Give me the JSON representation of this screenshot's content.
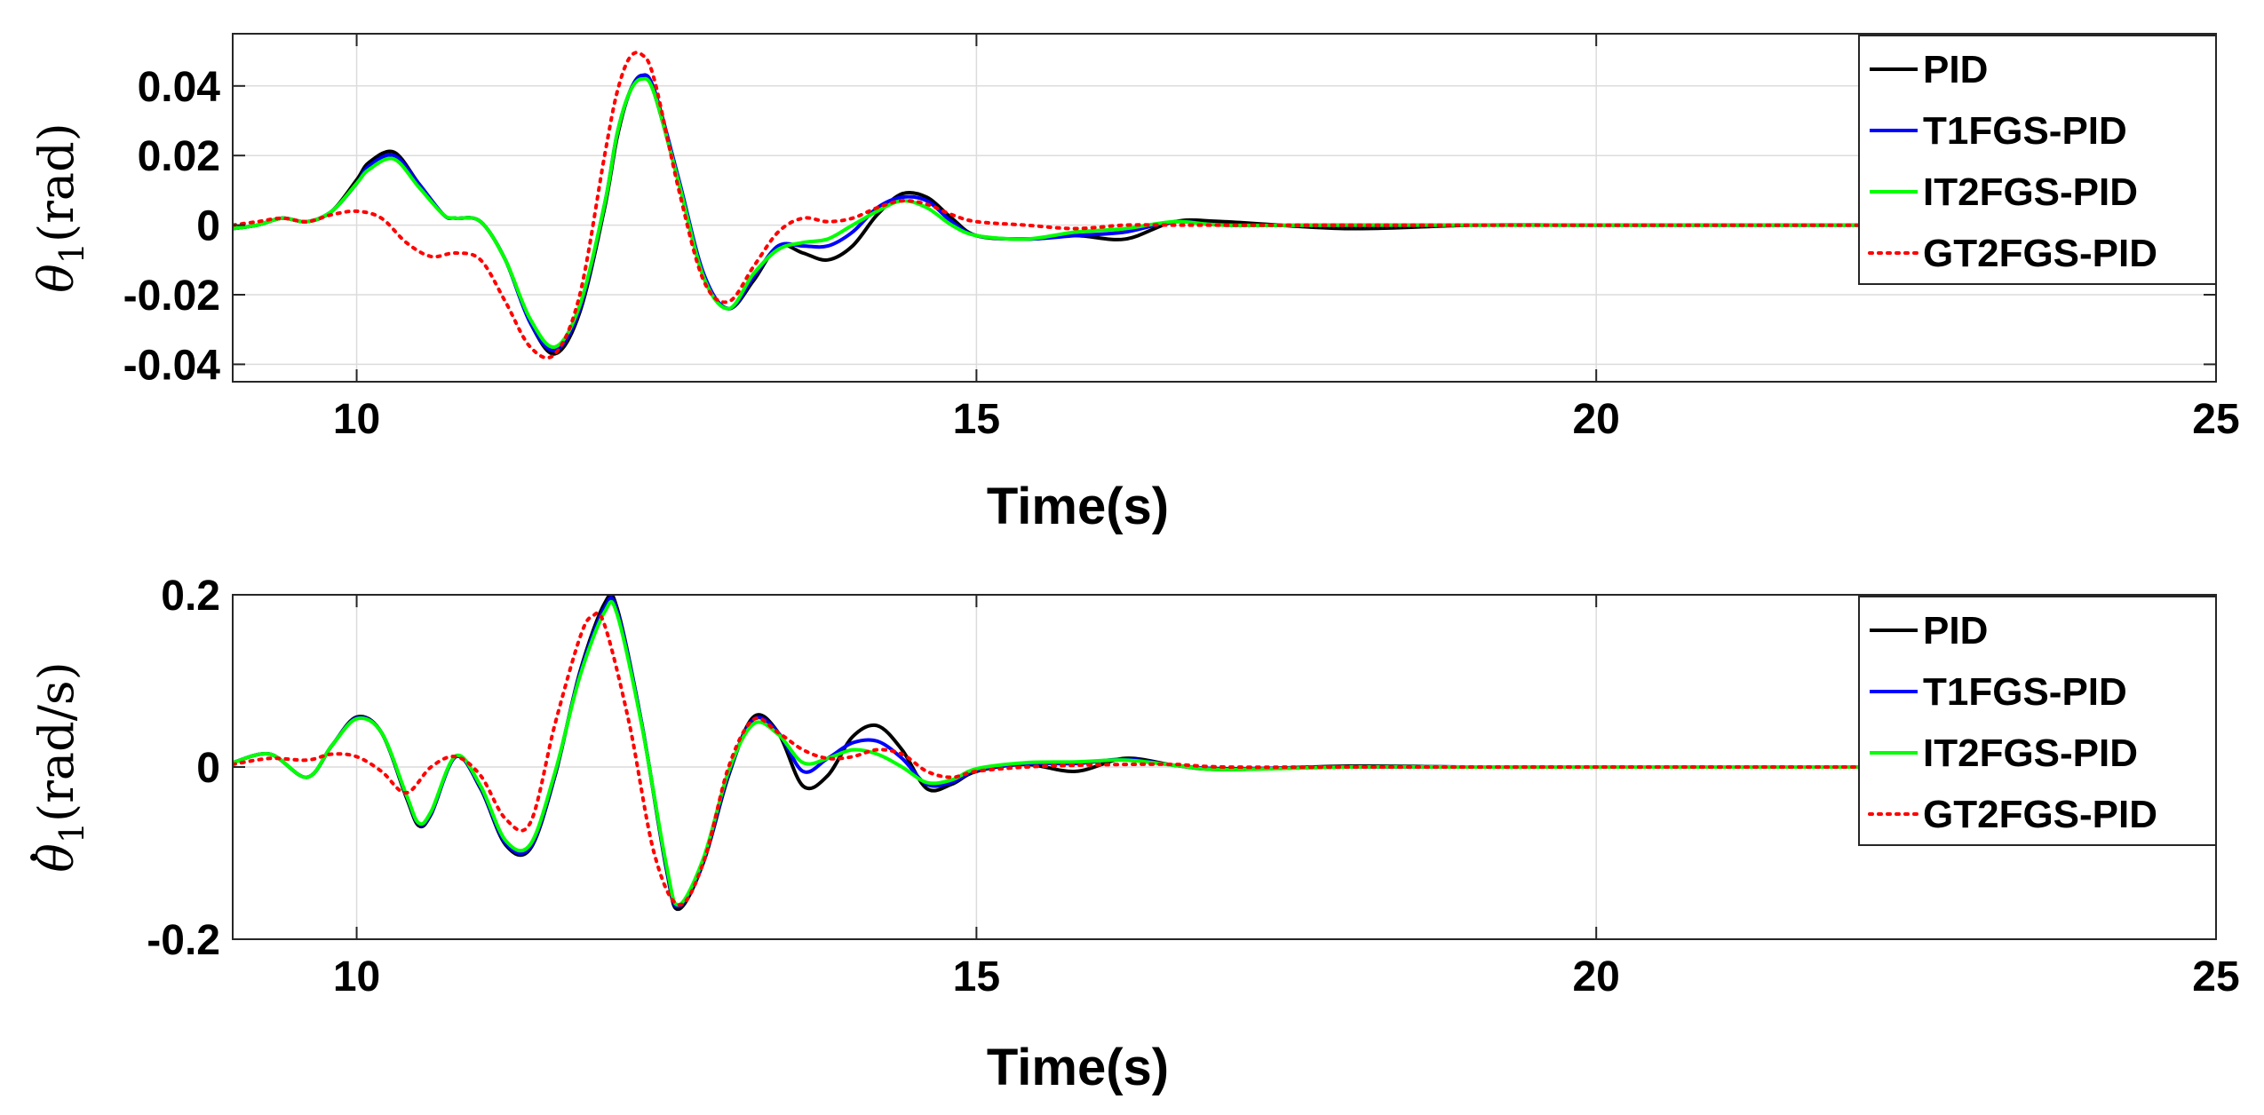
{
  "chart_data": [
    {
      "type": "line",
      "xlabel": "Time(s)",
      "ylabel": "θ₁(rad)",
      "ylabel_parts": {
        "symbol": "θ",
        "sub": "1",
        "unit": "(rad)"
      },
      "xlim": [
        9,
        25
      ],
      "ylim": [
        -0.045,
        0.055
      ],
      "xticks": [
        10,
        15,
        20,
        25
      ],
      "yticks": [
        -0.04,
        -0.02,
        0,
        0.02,
        0.04
      ],
      "ytick_labels": [
        "-0.04",
        "-0.02",
        "0",
        "0.02",
        "0.04"
      ],
      "grid": true,
      "legend_position": "top-right",
      "series": [
        {
          "name": "PID",
          "color": "#000000",
          "dash": "solid",
          "x": [
            9.0,
            9.2,
            9.4,
            9.6,
            9.8,
            10.0,
            10.1,
            10.3,
            10.5,
            10.7,
            10.8,
            11.0,
            11.2,
            11.4,
            11.6,
            11.8,
            12.0,
            12.1,
            12.2,
            12.3,
            12.4,
            12.6,
            12.8,
            13.0,
            13.2,
            13.4,
            13.6,
            13.8,
            14.0,
            14.2,
            14.4,
            14.6,
            14.8,
            15.0,
            15.4,
            15.8,
            16.2,
            16.6,
            17.0,
            18.0,
            19.0,
            20.0,
            22.3
          ],
          "y": [
            -0.001,
            0.0,
            0.002,
            0.001,
            0.004,
            0.013,
            0.018,
            0.021,
            0.012,
            0.003,
            0.002,
            0.001,
            -0.01,
            -0.028,
            -0.037,
            -0.025,
            0.005,
            0.025,
            0.038,
            0.043,
            0.038,
            0.012,
            -0.015,
            -0.024,
            -0.016,
            -0.006,
            -0.008,
            -0.01,
            -0.006,
            0.003,
            0.009,
            0.008,
            0.002,
            -0.003,
            -0.004,
            -0.003,
            -0.004,
            0.001,
            0.001,
            -0.001,
            0.0,
            0.0,
            0.0
          ]
        },
        {
          "name": "T1FGS-PID",
          "color": "#0000ff",
          "dash": "solid",
          "x": [
            9.0,
            9.2,
            9.4,
            9.6,
            9.8,
            10.0,
            10.1,
            10.3,
            10.5,
            10.7,
            10.8,
            11.0,
            11.2,
            11.4,
            11.6,
            11.8,
            12.0,
            12.1,
            12.2,
            12.3,
            12.4,
            12.6,
            12.8,
            13.0,
            13.2,
            13.4,
            13.6,
            13.8,
            14.0,
            14.2,
            14.4,
            14.6,
            14.8,
            15.0,
            15.4,
            15.8,
            16.2,
            16.6,
            17.0,
            18.0,
            19.0,
            20.0,
            22.3
          ],
          "y": [
            -0.001,
            0.0,
            0.002,
            0.001,
            0.004,
            0.012,
            0.017,
            0.02,
            0.012,
            0.003,
            0.002,
            0.001,
            -0.01,
            -0.028,
            -0.036,
            -0.024,
            0.006,
            0.026,
            0.038,
            0.043,
            0.039,
            0.013,
            -0.014,
            -0.024,
            -0.015,
            -0.006,
            -0.006,
            -0.006,
            -0.002,
            0.005,
            0.008,
            0.007,
            0.001,
            -0.003,
            -0.004,
            -0.003,
            -0.002,
            0.001,
            0.0,
            0.0,
            0.0,
            0.0,
            0.0
          ]
        },
        {
          "name": "IT2FGS-PID",
          "color": "#00ff00",
          "dash": "solid",
          "x": [
            9.0,
            9.2,
            9.4,
            9.6,
            9.8,
            10.0,
            10.1,
            10.3,
            10.5,
            10.7,
            10.8,
            11.0,
            11.2,
            11.4,
            11.6,
            11.8,
            12.0,
            12.1,
            12.2,
            12.3,
            12.4,
            12.6,
            12.8,
            13.0,
            13.2,
            13.4,
            13.6,
            13.8,
            14.0,
            14.2,
            14.4,
            14.6,
            14.8,
            15.0,
            15.4,
            15.8,
            16.2,
            16.6,
            17.0,
            18.0,
            19.0,
            20.0,
            22.3
          ],
          "y": [
            -0.001,
            0.0,
            0.002,
            0.001,
            0.004,
            0.012,
            0.016,
            0.019,
            0.011,
            0.003,
            0.002,
            0.001,
            -0.01,
            -0.027,
            -0.035,
            -0.023,
            0.006,
            0.026,
            0.038,
            0.042,
            0.038,
            0.012,
            -0.015,
            -0.024,
            -0.014,
            -0.007,
            -0.005,
            -0.004,
            0.0,
            0.004,
            0.007,
            0.005,
            0.0,
            -0.003,
            -0.004,
            -0.002,
            -0.001,
            0.001,
            0.0,
            0.0,
            0.0,
            0.0,
            0.0
          ]
        },
        {
          "name": "GT2FGS-PID",
          "color": "#ff0000",
          "dash": "dotted",
          "x": [
            9.0,
            9.2,
            9.4,
            9.6,
            9.8,
            10.0,
            10.2,
            10.4,
            10.6,
            10.8,
            11.0,
            11.2,
            11.4,
            11.6,
            11.8,
            12.0,
            12.1,
            12.2,
            12.3,
            12.4,
            12.6,
            12.8,
            13.0,
            13.2,
            13.4,
            13.6,
            13.8,
            14.0,
            14.2,
            14.4,
            14.6,
            14.8,
            15.0,
            15.4,
            15.8,
            16.2,
            16.6,
            17.0,
            18.0,
            19.0,
            20.0,
            22.3
          ],
          "y": [
            0.0,
            0.001,
            0.002,
            0.001,
            0.003,
            0.004,
            0.002,
            -0.005,
            -0.009,
            -0.008,
            -0.01,
            -0.022,
            -0.035,
            -0.037,
            -0.02,
            0.02,
            0.038,
            0.048,
            0.049,
            0.042,
            0.01,
            -0.016,
            -0.022,
            -0.012,
            -0.002,
            0.002,
            0.001,
            0.002,
            0.005,
            0.007,
            0.006,
            0.003,
            0.001,
            0.0,
            -0.001,
            0.0,
            0.0,
            0.0,
            0.0,
            0.0,
            0.0,
            0.0
          ]
        }
      ]
    },
    {
      "type": "line",
      "xlabel": "Time(s)",
      "ylabel": "θ̇₁(rad/s)",
      "ylabel_parts": {
        "symbol": "θ",
        "sub": "1",
        "unit": "(rad/s)"
      },
      "xlim": [
        9,
        25
      ],
      "ylim": [
        -0.2,
        0.2
      ],
      "xticks": [
        10,
        15,
        20,
        25
      ],
      "yticks": [
        -0.2,
        0,
        0.2
      ],
      "ytick_labels": [
        "-0.2",
        "0",
        "0.2"
      ],
      "grid": true,
      "legend_position": "top-right",
      "series": [
        {
          "name": "PID",
          "color": "#000000",
          "dash": "solid",
          "x": [
            9.0,
            9.3,
            9.6,
            9.8,
            10.0,
            10.2,
            10.4,
            10.5,
            10.6,
            10.8,
            11.0,
            11.2,
            11.4,
            11.6,
            11.8,
            12.0,
            12.1,
            12.3,
            12.5,
            12.6,
            12.8,
            13.0,
            13.2,
            13.4,
            13.6,
            13.8,
            14.0,
            14.2,
            14.4,
            14.6,
            14.8,
            15.0,
            15.4,
            15.8,
            16.2,
            16.6,
            17.0,
            18.0,
            19.0,
            20.0,
            22.3
          ],
          "y": [
            0.005,
            0.015,
            -0.012,
            0.025,
            0.058,
            0.04,
            -0.035,
            -0.068,
            -0.055,
            0.012,
            -0.025,
            -0.09,
            -0.095,
            -0.01,
            0.11,
            0.19,
            0.185,
            0.05,
            -0.12,
            -0.165,
            -0.11,
            -0.01,
            0.058,
            0.04,
            -0.022,
            -0.01,
            0.035,
            0.048,
            0.02,
            -0.025,
            -0.02,
            -0.005,
            0.003,
            -0.005,
            0.01,
            0.002,
            -0.003,
            0.001,
            0.0,
            0.0,
            0.0
          ]
        },
        {
          "name": "T1FGS-PID",
          "color": "#0000ff",
          "dash": "solid",
          "x": [
            9.0,
            9.3,
            9.6,
            9.8,
            10.0,
            10.2,
            10.4,
            10.5,
            10.6,
            10.8,
            11.0,
            11.2,
            11.4,
            11.6,
            11.8,
            12.0,
            12.1,
            12.3,
            12.5,
            12.6,
            12.8,
            13.0,
            13.2,
            13.4,
            13.6,
            13.8,
            14.0,
            14.2,
            14.4,
            14.6,
            14.8,
            15.0,
            15.4,
            15.8,
            16.2,
            16.6,
            17.0,
            18.0,
            19.0,
            20.0,
            22.3
          ],
          "y": [
            0.005,
            0.015,
            -0.012,
            0.025,
            0.057,
            0.04,
            -0.033,
            -0.066,
            -0.054,
            0.012,
            -0.024,
            -0.088,
            -0.093,
            -0.008,
            0.108,
            0.185,
            0.182,
            0.05,
            -0.118,
            -0.162,
            -0.108,
            -0.008,
            0.055,
            0.04,
            -0.005,
            0.01,
            0.028,
            0.03,
            0.01,
            -0.02,
            -0.018,
            -0.004,
            0.004,
            0.004,
            0.009,
            0.002,
            -0.002,
            0.0,
            0.0,
            0.0,
            0.0
          ]
        },
        {
          "name": "IT2FGS-PID",
          "color": "#00ff00",
          "dash": "solid",
          "x": [
            9.0,
            9.3,
            9.6,
            9.8,
            10.0,
            10.2,
            10.4,
            10.5,
            10.6,
            10.8,
            11.0,
            11.2,
            11.4,
            11.6,
            11.8,
            12.0,
            12.1,
            12.3,
            12.5,
            12.6,
            12.8,
            13.0,
            13.2,
            13.4,
            13.6,
            13.8,
            14.0,
            14.2,
            14.4,
            14.6,
            14.8,
            15.0,
            15.4,
            15.8,
            16.2,
            16.6,
            17.0,
            18.0,
            19.0,
            20.0,
            22.3
          ],
          "y": [
            0.005,
            0.015,
            -0.012,
            0.025,
            0.056,
            0.04,
            -0.032,
            -0.065,
            -0.052,
            0.013,
            -0.022,
            -0.085,
            -0.09,
            -0.006,
            0.105,
            0.18,
            0.178,
            0.048,
            -0.115,
            -0.16,
            -0.105,
            -0.005,
            0.05,
            0.038,
            0.005,
            0.01,
            0.02,
            0.015,
            0.0,
            -0.018,
            -0.015,
            -0.002,
            0.005,
            0.006,
            0.008,
            0.002,
            -0.003,
            0.0,
            0.0,
            0.0,
            0.0
          ]
        },
        {
          "name": "GT2FGS-PID",
          "color": "#ff0000",
          "dash": "dotted",
          "x": [
            9.0,
            9.3,
            9.6,
            9.8,
            10.0,
            10.2,
            10.4,
            10.6,
            10.8,
            11.0,
            11.2,
            11.4,
            11.6,
            11.8,
            11.9,
            12.0,
            12.2,
            12.4,
            12.6,
            12.8,
            13.0,
            13.2,
            13.4,
            13.6,
            13.8,
            14.0,
            14.2,
            14.4,
            14.6,
            14.8,
            15.0,
            15.4,
            15.8,
            16.2,
            16.6,
            17.0,
            18.0,
            19.0,
            20.0,
            22.3
          ],
          "y": [
            0.003,
            0.01,
            0.008,
            0.015,
            0.012,
            -0.005,
            -0.03,
            0.0,
            0.012,
            -0.01,
            -0.06,
            -0.065,
            0.05,
            0.15,
            0.175,
            0.165,
            0.05,
            -0.1,
            -0.16,
            -0.11,
            0.0,
            0.055,
            0.04,
            0.02,
            0.01,
            0.012,
            0.02,
            0.015,
            -0.005,
            -0.012,
            -0.005,
            0.0,
            0.002,
            0.003,
            0.003,
            0.0,
            0.0,
            0.0,
            0.0,
            0.0
          ]
        }
      ]
    }
  ]
}
